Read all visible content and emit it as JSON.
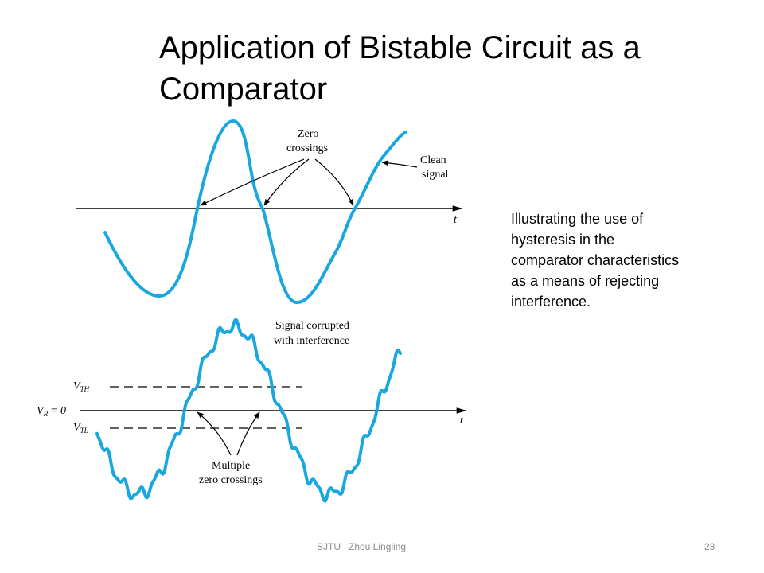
{
  "slide": {
    "title_line1": "Application of Bistable Circuit as a",
    "title_line2": "Comparator",
    "caption_lines": [
      "Illustrating the use of",
      "hysteresis in the",
      "comparator characteristics",
      "as a means of rejecting",
      "interference."
    ],
    "footer": {
      "org": "SJTU",
      "author": "Zhou Lingling"
    },
    "page_number": "23"
  },
  "figure": {
    "top": {
      "label_zero_line1": "Zero",
      "label_zero_line2": "crossings",
      "label_clean_line1": "Clean",
      "label_clean_line2": "signal",
      "axis_t": "t"
    },
    "bottom": {
      "label_signal_line1": "Signal corrupted",
      "label_signal_line2": "with interference",
      "vth_main": "V",
      "vth_sub": "TH",
      "vr_main": "V",
      "vr_sub": "R",
      "vr_eq": "= 0",
      "vtl_main": "V",
      "vtl_sub": "TL",
      "label_multiple_line1": "Multiple",
      "label_multiple_line2": "zero crossings",
      "axis_t": "t"
    },
    "colors": {
      "signal": "#1aa7e0",
      "lines": "#000000"
    }
  }
}
